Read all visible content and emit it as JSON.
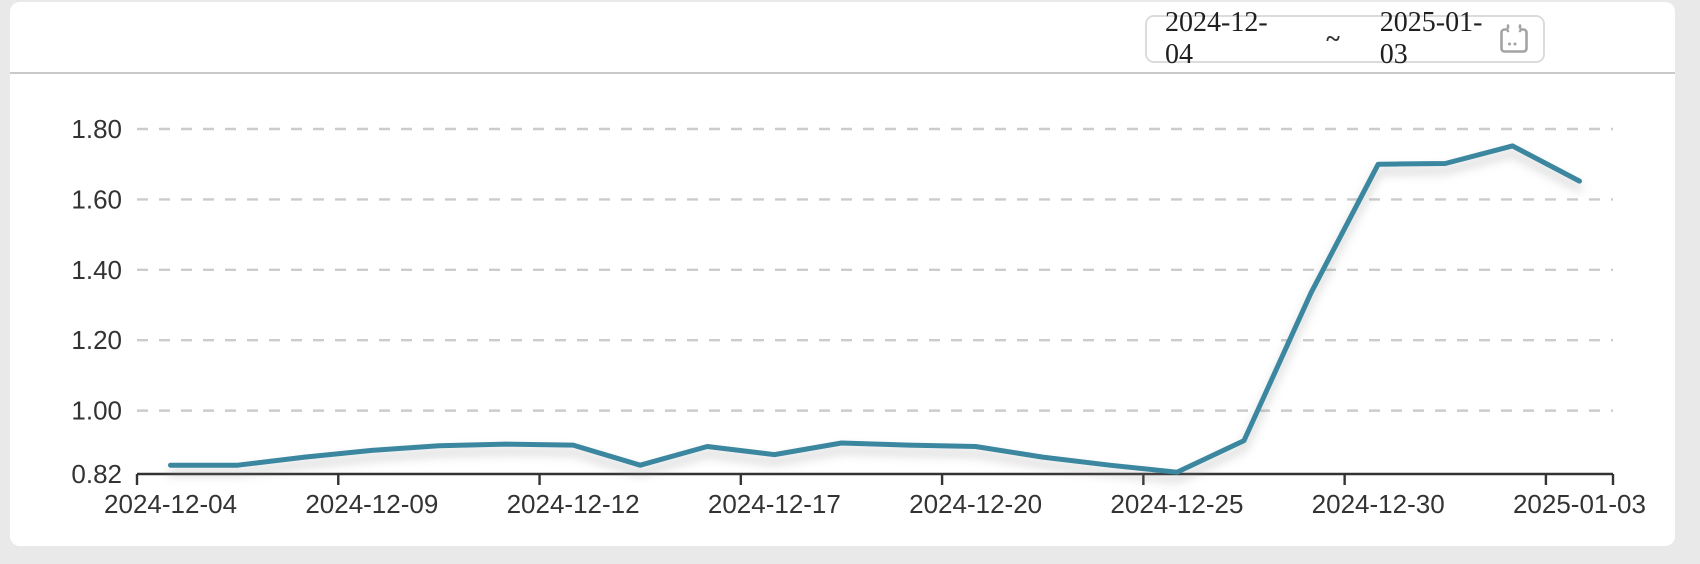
{
  "header": {
    "date_range_picker": {
      "start_date": "2024-12-04",
      "separator": "~",
      "end_date": "2025-01-03",
      "icon": "calendar-icon"
    }
  },
  "chart_data": {
    "type": "line",
    "title": "",
    "xlabel": "",
    "ylabel": "",
    "x": [
      "2024-12-04",
      "2024-12-05",
      "2024-12-06",
      "2024-12-09",
      "2024-12-10",
      "2024-12-11",
      "2024-12-12",
      "2024-12-13",
      "2024-12-16",
      "2024-12-17",
      "2024-12-18",
      "2024-12-19",
      "2024-12-20",
      "2024-12-23",
      "2024-12-24",
      "2024-12-25",
      "2024-12-26",
      "2024-12-27",
      "2024-12-30",
      "2024-12-31",
      "2025-01-02",
      "2025-01-03"
    ],
    "values": [
      0.845,
      0.845,
      0.868,
      0.887,
      0.9,
      0.905,
      0.902,
      0.845,
      0.898,
      0.875,
      0.908,
      0.902,
      0.898,
      0.868,
      0.845,
      0.825,
      0.915,
      1.335,
      1.7,
      1.702,
      1.752,
      1.652
    ],
    "x_tick_indices": [
      0,
      3,
      6,
      9,
      12,
      15,
      18,
      21
    ],
    "x_tick_labels": [
      "2024-12-04",
      "2024-12-09",
      "2024-12-12",
      "2024-12-17",
      "2024-12-20",
      "2024-12-25",
      "2024-12-30",
      "2025-01-03"
    ],
    "y_tick_values": [
      0.82,
      1.0,
      1.2,
      1.4,
      1.6,
      1.8
    ],
    "y_tick_labels": [
      "0.82",
      "1.00",
      "1.20",
      "1.40",
      "1.60",
      "1.80"
    ],
    "ylim": [
      0.82,
      1.8
    ],
    "grid": "horizontal-dashed",
    "legend": "none",
    "line_color": "#3a87a0",
    "grid_color": "#cccccc",
    "axis_color": "#333333",
    "label_color": "#333333"
  }
}
